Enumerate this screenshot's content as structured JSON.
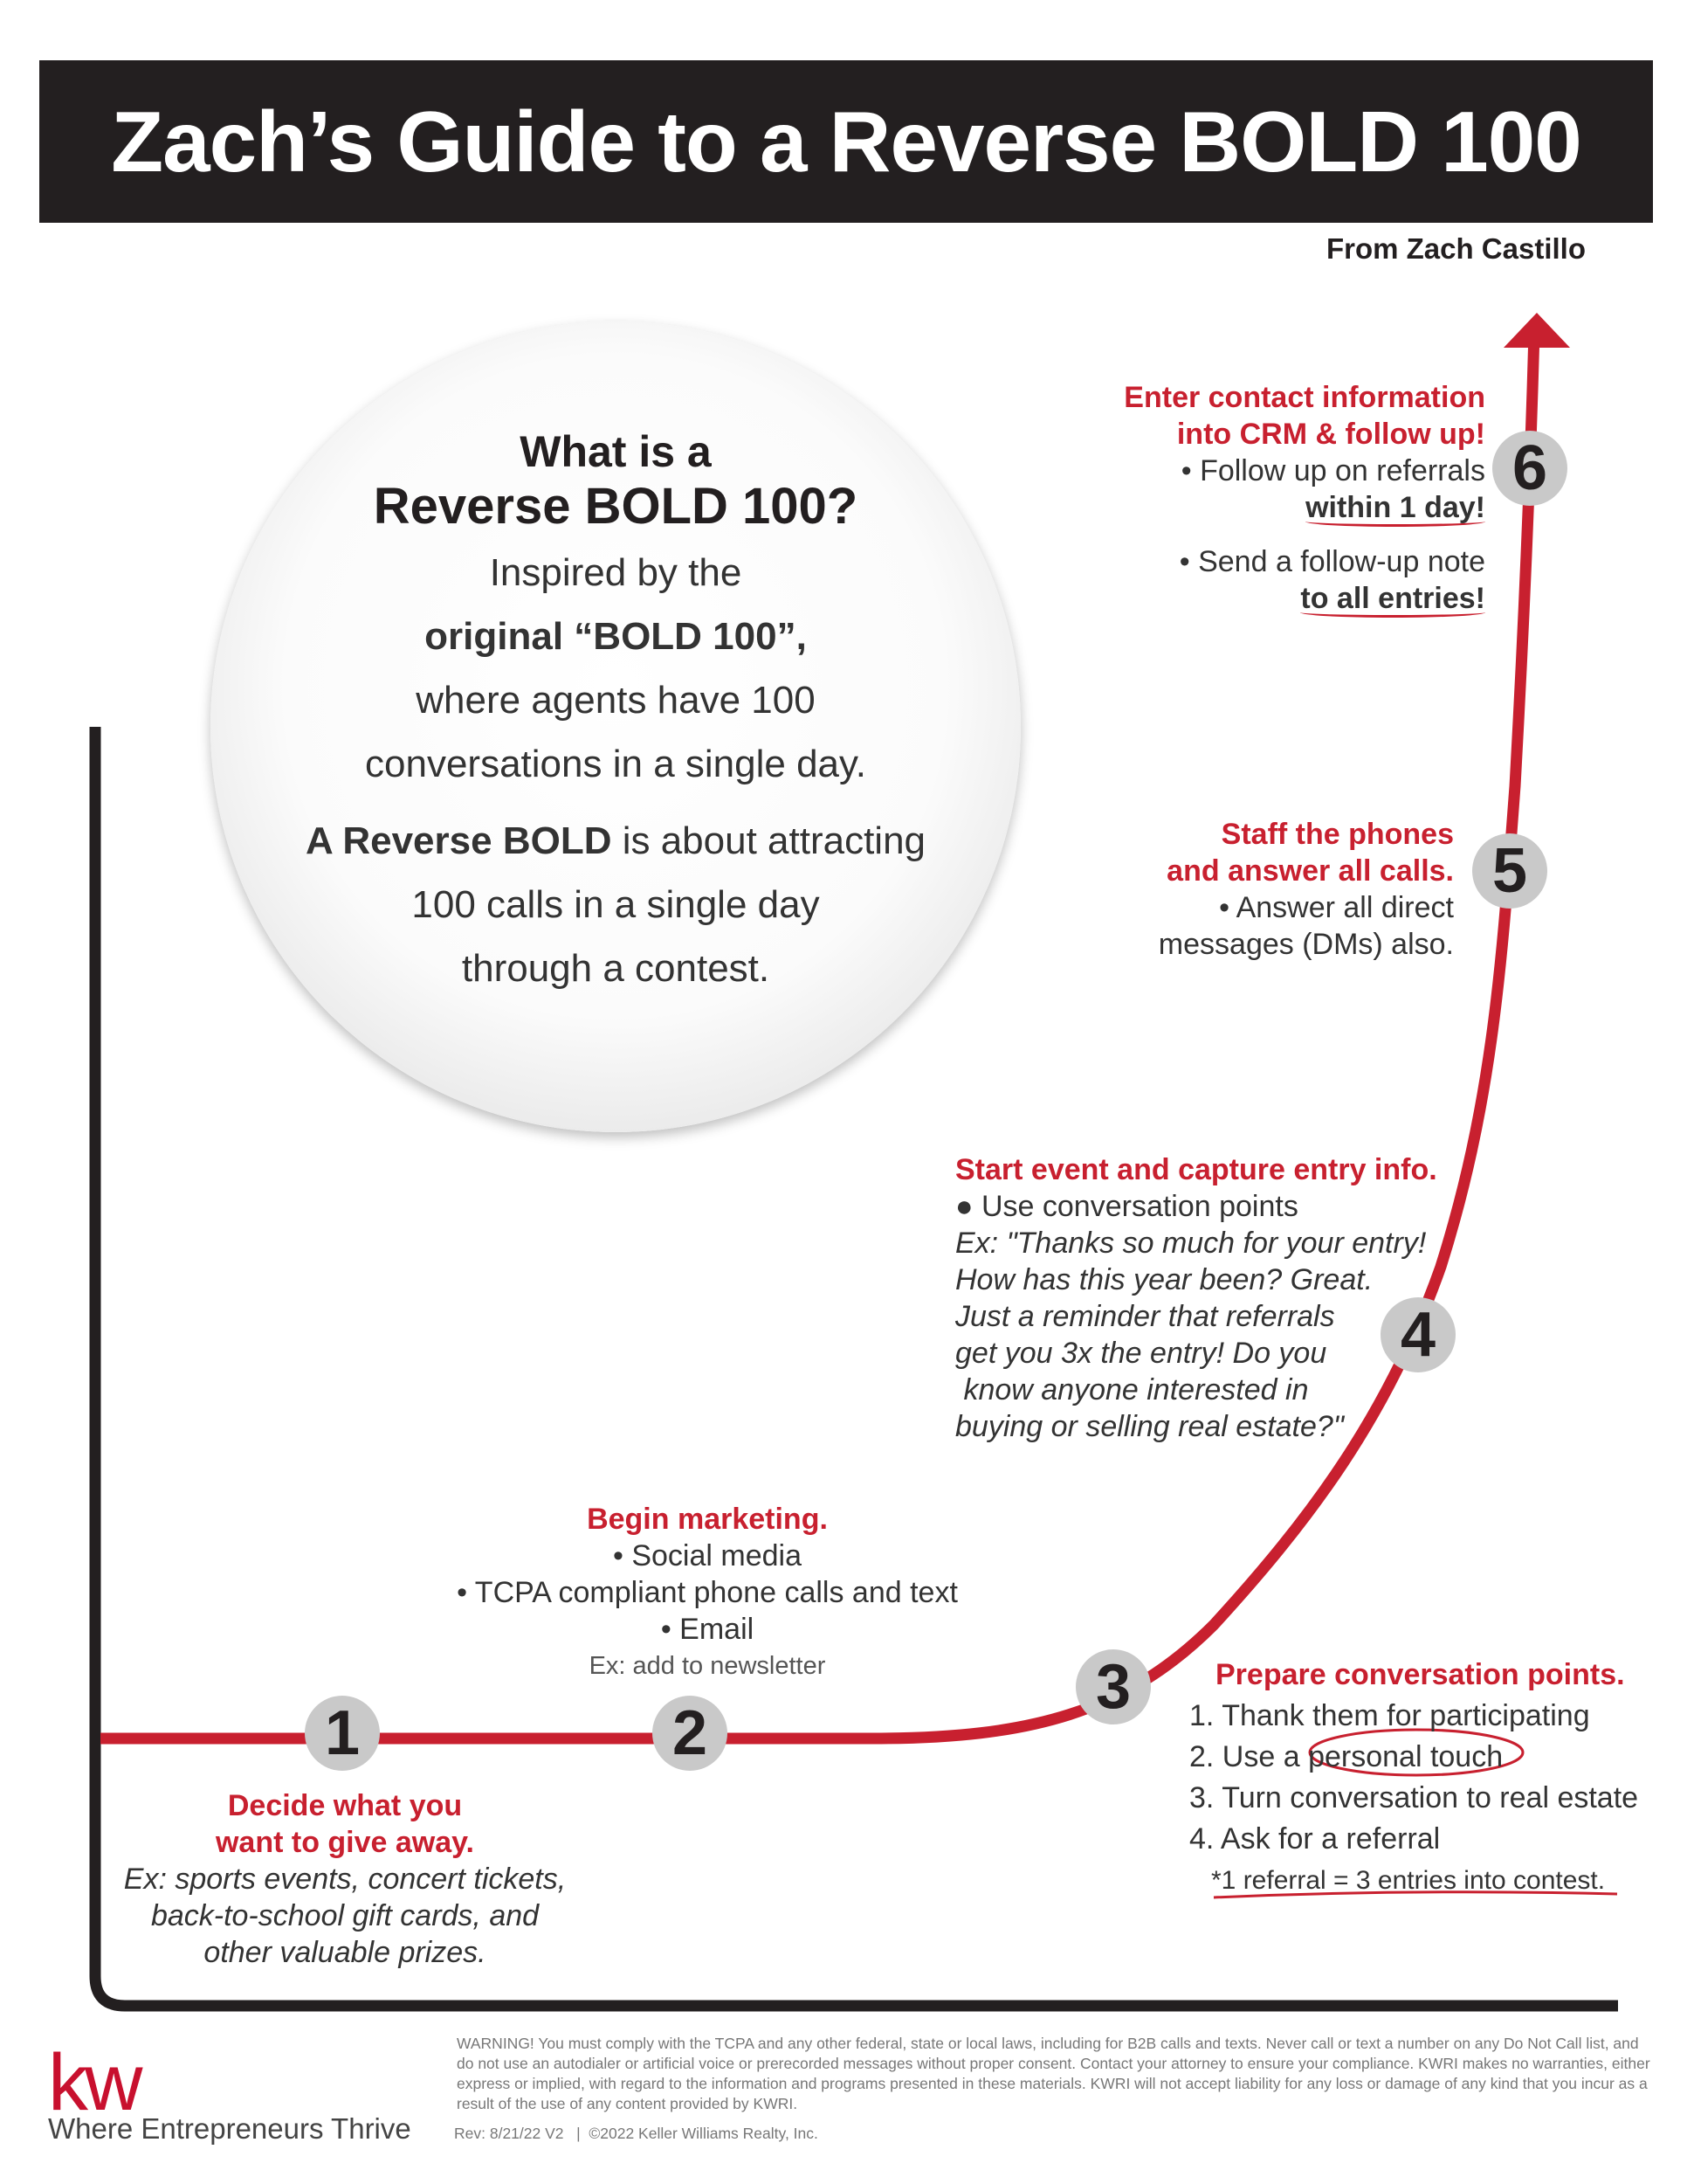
{
  "header": {
    "title": "Zach’s Guide to a Reverse BOLD 100",
    "byline": "From Zach Castillo"
  },
  "intro": {
    "q1": "What is a",
    "q2": "Reverse BOLD 100?",
    "l1": "Inspired by the",
    "l2": "original “BOLD 100”,",
    "l3": "where agents have 100",
    "l4": "conversations in a single day.",
    "l5a": "A Reverse BOLD",
    "l5b": " is about attracting",
    "l6": "100 calls in a single day",
    "l7": "through a contest."
  },
  "steps": [
    {
      "num": "1",
      "title1": "Decide what you",
      "title2": "want to give away.",
      "lines": [
        "Ex: sports events, concert tickets,",
        "back-to-school gift cards, and",
        "other valuable prizes."
      ]
    },
    {
      "num": "2",
      "title": "Begin marketing.",
      "lines": [
        "• Social media",
        "• TCPA compliant phone calls and text",
        "• Email",
        "Ex: add to newsletter"
      ]
    },
    {
      "num": "3",
      "title": "Prepare conversation points.",
      "lines": [
        "1. Thank them for participating",
        "2. Use a ",
        "personal touch",
        "3. Turn conversation to real estate",
        "4. Ask for a referral",
        "*1 referral = 3 entries into contest."
      ]
    },
    {
      "num": "4",
      "title": "Start event and capture entry info.",
      "lines": [
        "● Use conversation points",
        "Ex:  \"Thanks so much for your entry!",
        "How has this year been? Great.",
        "Just a reminder that referrals",
        "get you 3x the entry! Do you",
        " know anyone interested in",
        "buying or selling real estate?\""
      ]
    },
    {
      "num": "5",
      "title1": "Staff the phones",
      "title2": "and answer all calls.",
      "lines": [
        "• Answer all direct",
        "messages (DMs) also."
      ]
    },
    {
      "num": "6",
      "title1": "Enter contact information",
      "title2": "into CRM & follow up!",
      "lines": [
        "• Follow up on referrals",
        "within 1 day!",
        "• Send a follow-up note",
        "to all entries!"
      ]
    }
  ],
  "footer": {
    "logo": "kw",
    "tagline": "Where Entrepreneurs Thrive",
    "warning": "WARNING! You must comply with the TCPA and any other federal, state or local laws, including for B2B calls and texts. Never call or text a number on any Do Not Call list, and do not use an autodialer or artificial voice or prerecorded messages without proper consent. Contact your attorney to ensure your compliance. KWRI makes no warranties, either express or implied, with regard to the information and programs presented in these materials. KWRI will not accept liability for any loss or damage of any kind that you incur as a result of the use of any content provided by KWRI.",
    "rev": "Rev: 8/21/22 V2   |  ©2022 Keller Williams Realty, Inc."
  },
  "colors": {
    "accent": "#c8202f",
    "dark": "#231f20",
    "badge": "#c9c9c9"
  }
}
